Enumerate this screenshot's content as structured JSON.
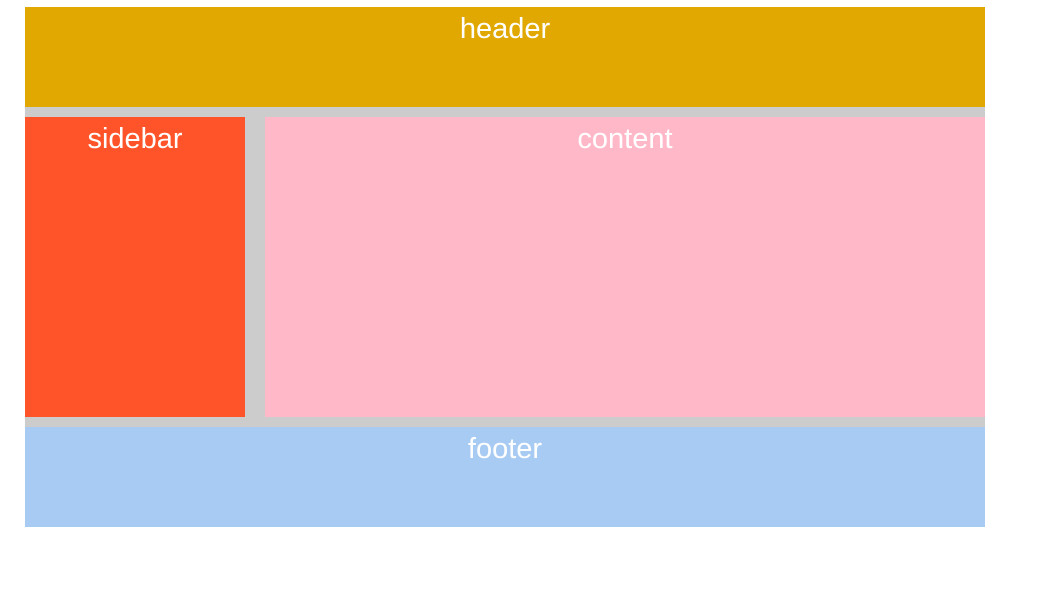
{
  "header": {
    "label": "header",
    "color": "#e0a800"
  },
  "sidebar": {
    "label": "sidebar",
    "color": "#ff5329"
  },
  "content": {
    "label": "content",
    "color": "#ffb8c8"
  },
  "footer": {
    "label": "footer",
    "color": "#a7cbf2"
  },
  "gap_color": "#cccccc"
}
